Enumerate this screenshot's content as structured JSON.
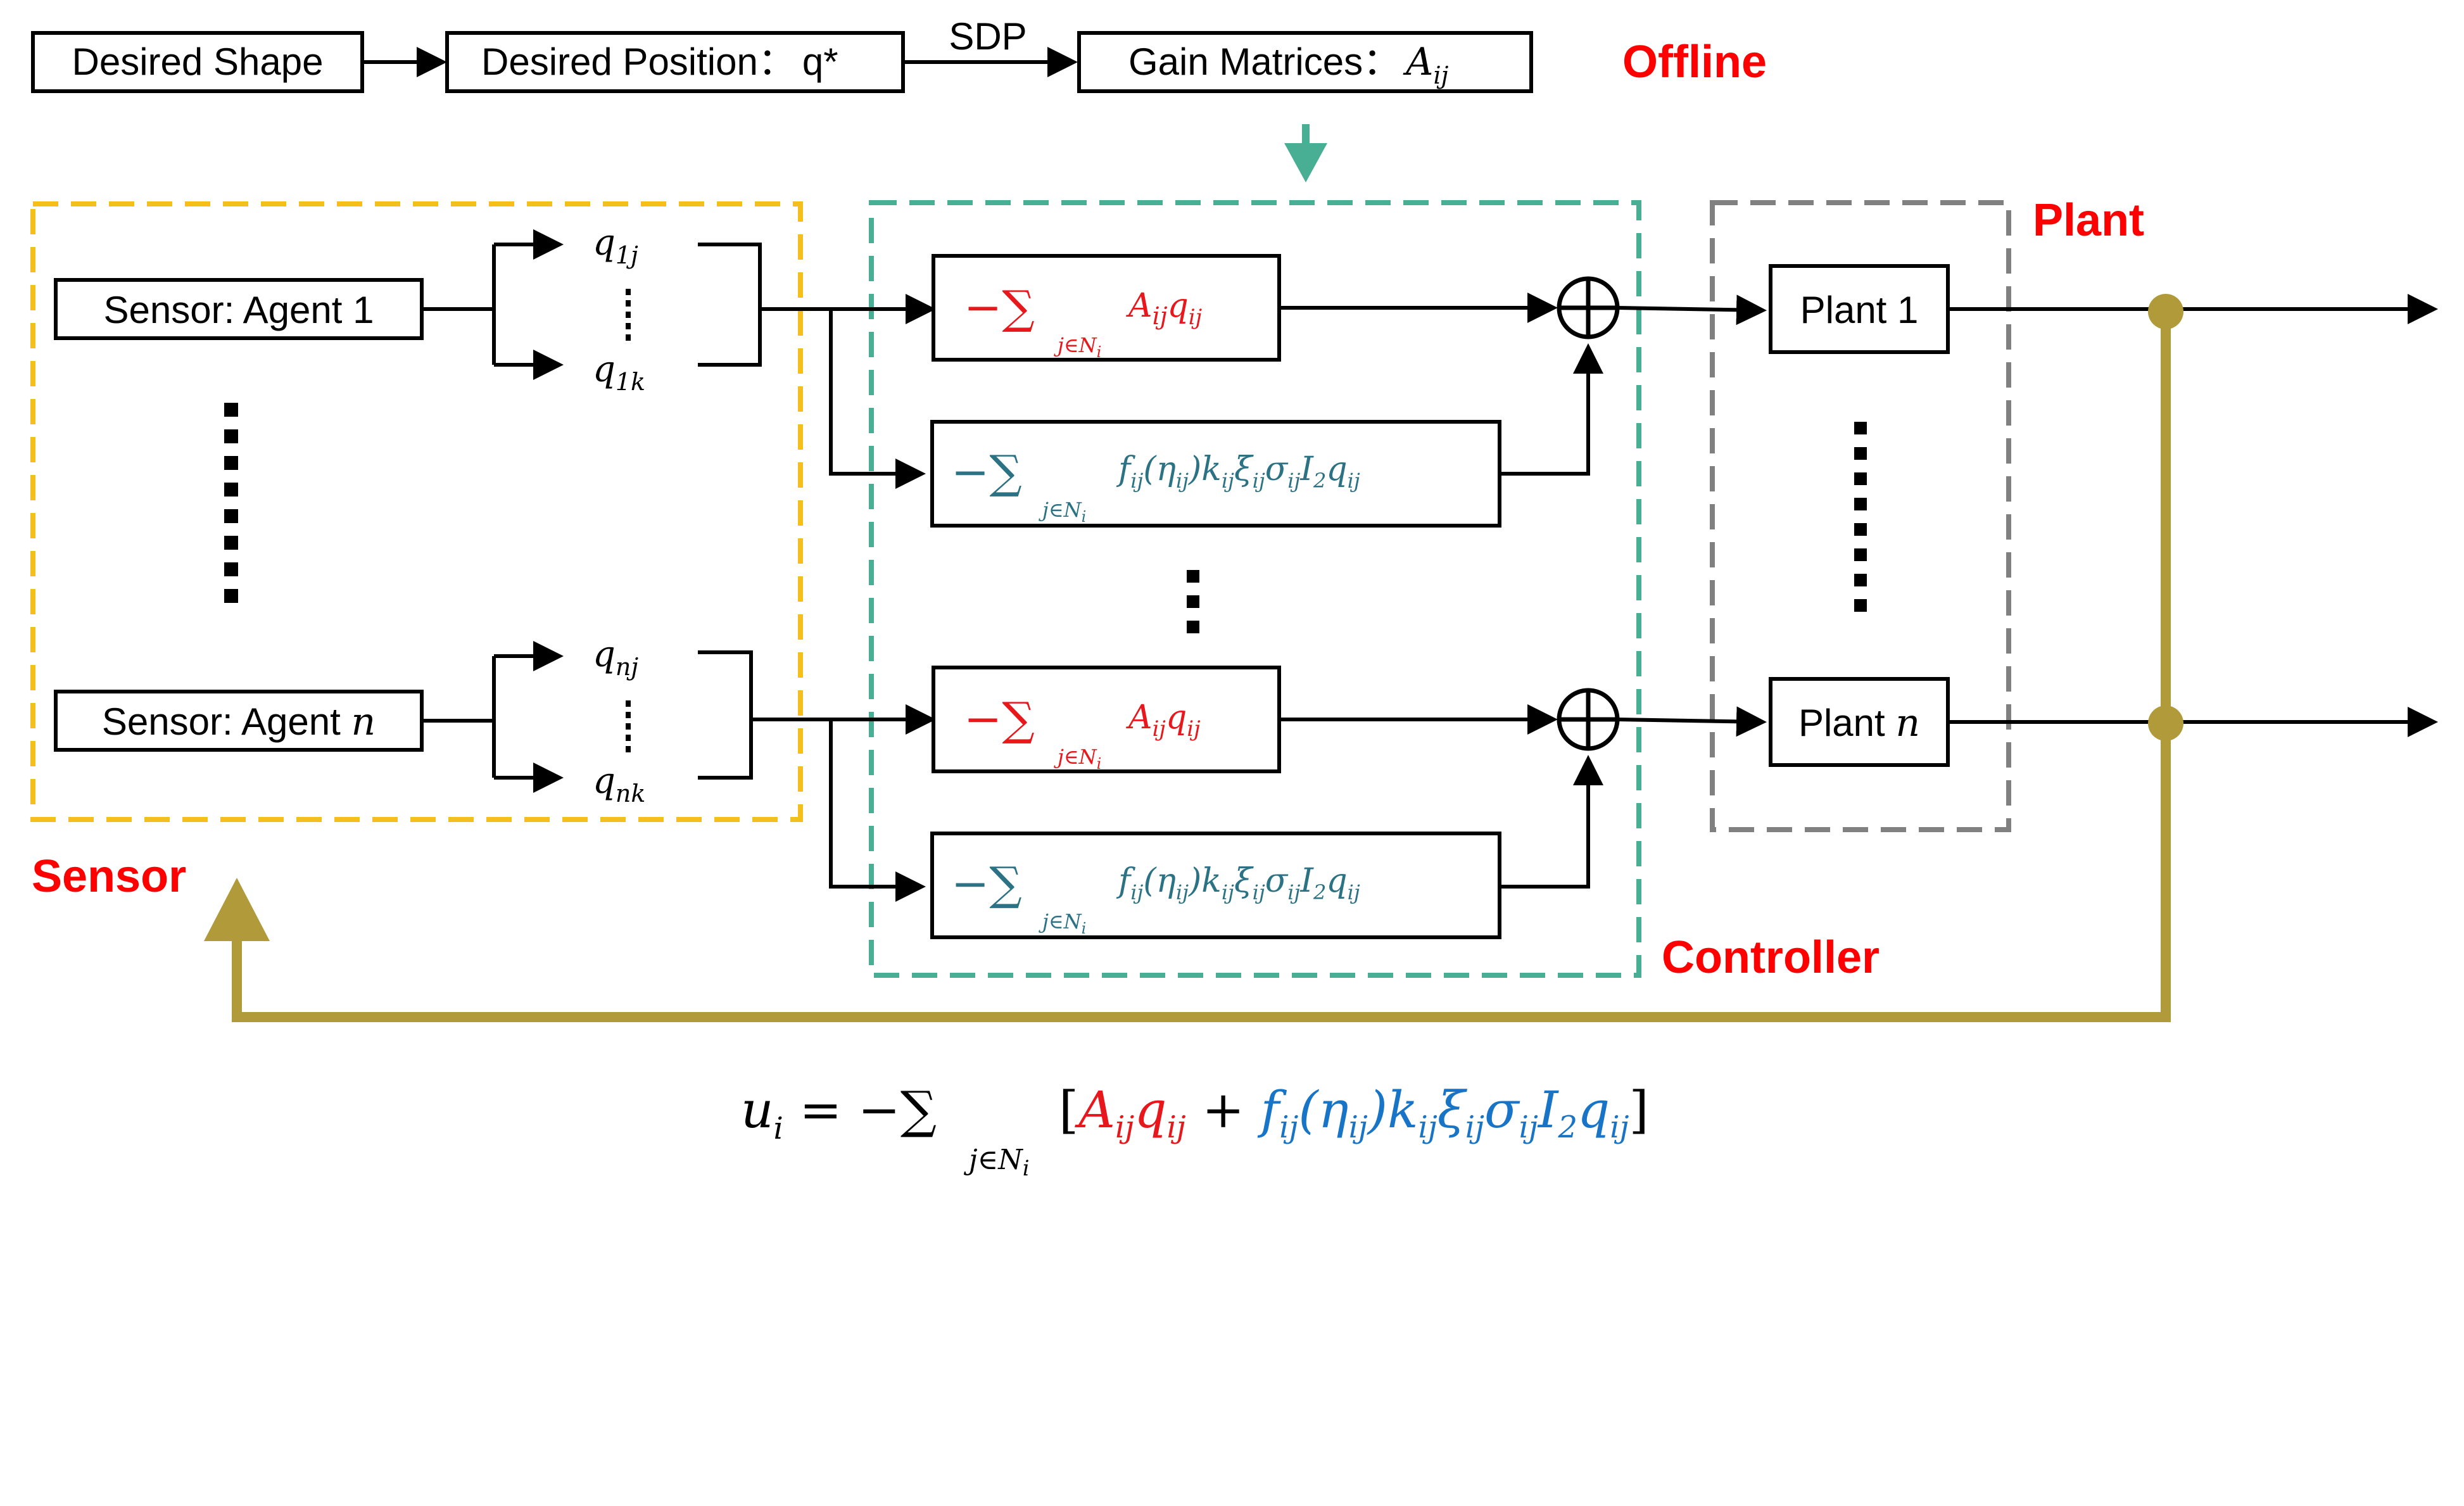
{
  "colors": {
    "sensor_region": "#f3bf1b",
    "controller_region": "#49af94",
    "plant_region": "#808080",
    "feedback": "#b09a3a",
    "region_label": "#ff0000",
    "offline_arrow": "#49af94"
  },
  "top_row": {
    "desired_shape": "Desired Shape",
    "desired_position": "Desired Position：",
    "desired_position_symbol": "q*",
    "sdp": "SDP",
    "gain_matrices": "Gain Matrices：",
    "gain_symbol": "A",
    "gain_sub": "ij",
    "offline": "Offline"
  },
  "regions": {
    "sensor": "Sensor",
    "controller": "Controller",
    "plant": "Plant"
  },
  "sensors": [
    {
      "label": "Sensor: Agent 1",
      "q_top": "q",
      "q_top_sub": "1j",
      "q_bottom": "q",
      "q_bottom_sub": "1k"
    },
    {
      "label": "Sensor: Agent ",
      "label_var": "n",
      "q_top": "q",
      "q_top_sub": "nj",
      "q_bottom": "q",
      "q_bottom_sub": "nk"
    }
  ],
  "plants": [
    {
      "label": "Plant 1"
    },
    {
      "label": "Plant ",
      "label_var": "n"
    }
  ],
  "controller_terms": {
    "term_a": {
      "prefix": "−∑",
      "sub": "j∈N",
      "sub_i": "i",
      "body": "A",
      "body_sub": "ij",
      "body2": "q",
      "body2_sub": "ij"
    },
    "term_b": {
      "prefix": "−∑",
      "sub": "j∈N",
      "sub_i": "i",
      "body": "f",
      "b1": "ij",
      "b2": "(η",
      "b3": "ij",
      "b4": ")k",
      "b5": "ij",
      "b6": "ξ",
      "b7": "ij",
      "b8": "σ",
      "b9": "ij",
      "b10": "I",
      "b11": "2",
      "b12": "q",
      "b13": "ij"
    }
  },
  "equation": {
    "lhs": "u",
    "lhs_sub": "i",
    "eq": " = −∑",
    "sum_sub": "j∈N",
    "sum_sub_i": "i",
    "open": "[",
    "red_a": "A",
    "red_a_sub": "ij",
    "red_q": "q",
    "red_q_sub": "ij",
    "plus": " + ",
    "blue_f": "f",
    "blue_f_sub": "ij",
    "blue_eta": "(η",
    "blue_eta_sub": "ij",
    "blue_k": ")k",
    "blue_k_sub": "ij",
    "blue_xi": "ξ",
    "blue_xi_sub": "ij",
    "blue_sigma": "σ",
    "blue_sigma_sub": "ij",
    "blue_i": "I",
    "blue_i_sub": "2",
    "blue_q": "q",
    "blue_q_sub": "ij",
    "close": "]"
  }
}
